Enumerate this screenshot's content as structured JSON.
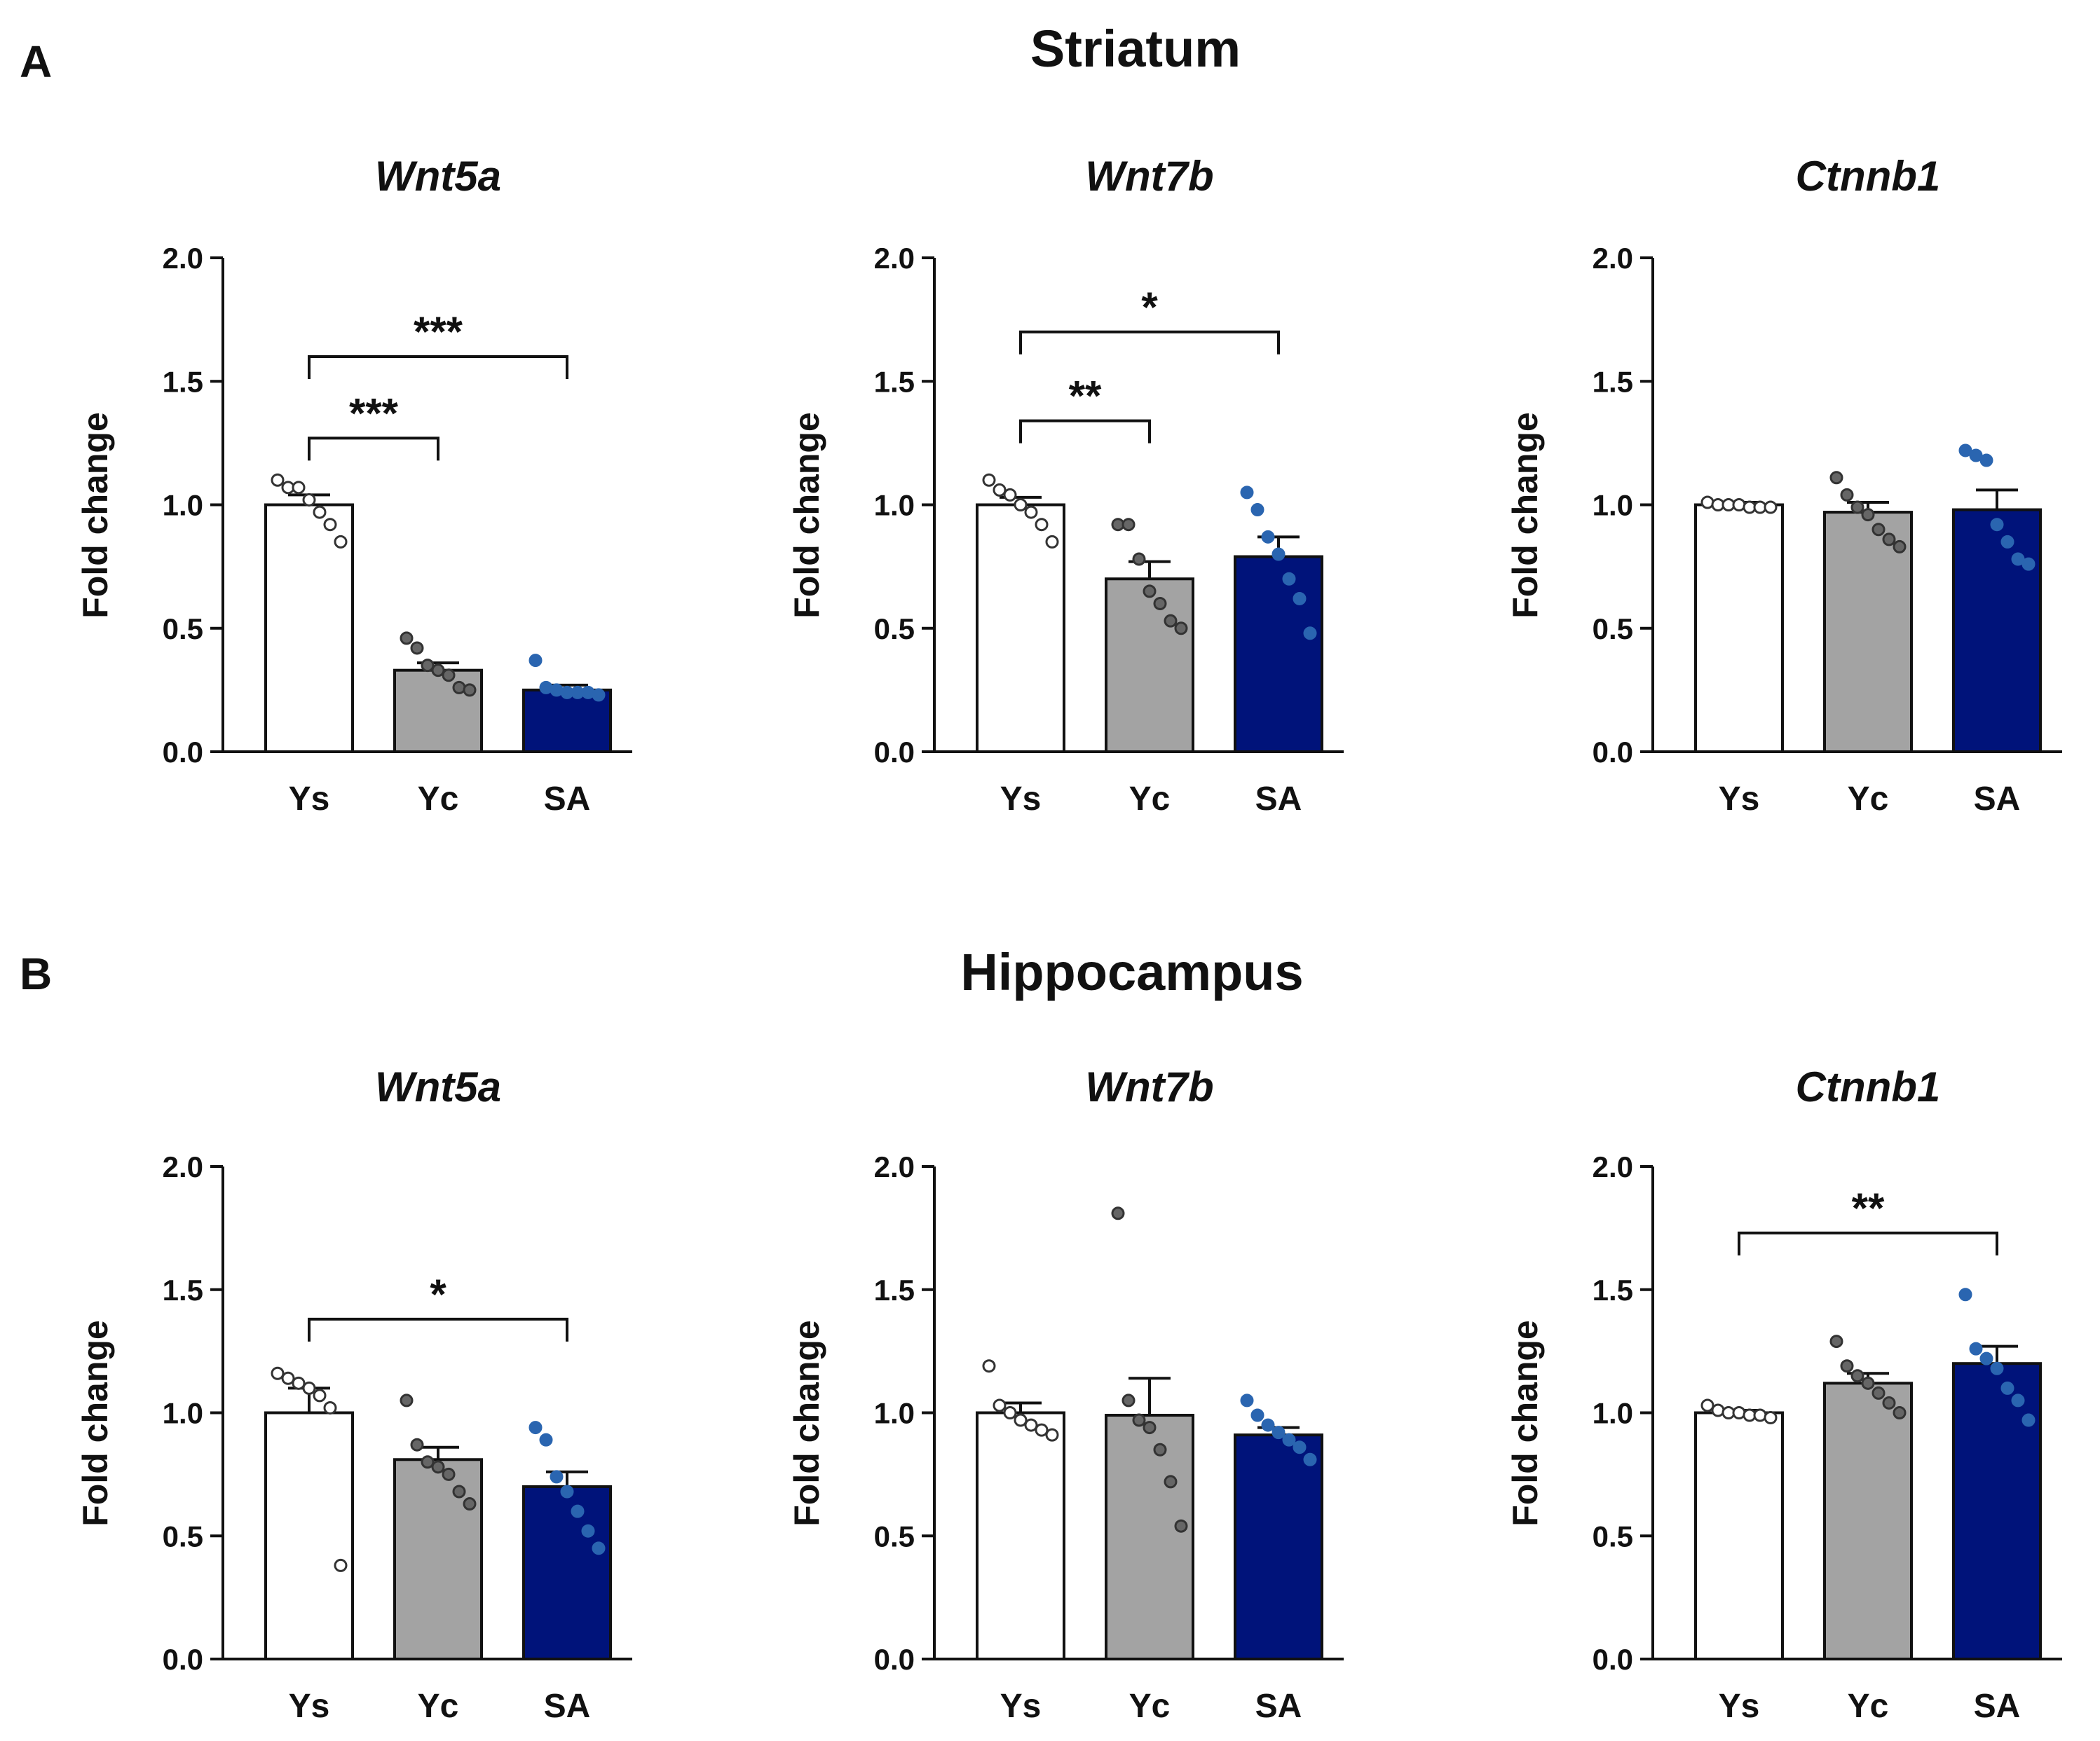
{
  "figure": {
    "panels": [
      {
        "letter": "A",
        "title": "Striatum"
      },
      {
        "letter": "B",
        "title": "Hippocampus"
      }
    ]
  },
  "colors": {
    "Ys": "#ffffff",
    "Yc": "#a3a3a3",
    "SA": "#00137a",
    "SA_dot": "#2a65b0",
    "axis": "#111111"
  },
  "chart_data": [
    {
      "type": "bar",
      "panel": "A",
      "title": "Wnt5a",
      "xlabel": "",
      "ylabel": "Fold change",
      "ylim": [
        0,
        2.0
      ],
      "yticks": [
        "0.0",
        "0.5",
        "1.0",
        "1.5",
        "2.0"
      ],
      "categories": [
        "Ys",
        "Yc",
        "SA"
      ],
      "values": [
        1.0,
        0.33,
        0.25
      ],
      "sem": [
        0.04,
        0.03,
        0.02
      ],
      "points": [
        [
          1.1,
          1.07,
          1.07,
          1.02,
          0.97,
          0.92,
          0.85
        ],
        [
          0.46,
          0.42,
          0.35,
          0.33,
          0.31,
          0.26,
          0.25
        ],
        [
          0.37,
          0.26,
          0.25,
          0.24,
          0.24,
          0.24,
          0.23
        ]
      ],
      "comparisons": [
        {
          "from": 0,
          "to": 1,
          "label": "***",
          "level": 1.27
        },
        {
          "from": 0,
          "to": 2,
          "label": "***",
          "level": 1.6
        }
      ]
    },
    {
      "type": "bar",
      "panel": "A",
      "title": "Wnt7b",
      "xlabel": "",
      "ylabel": "Fold change",
      "ylim": [
        0,
        2.0
      ],
      "yticks": [
        "0.0",
        "0.5",
        "1.0",
        "1.5",
        "2.0"
      ],
      "categories": [
        "Ys",
        "Yc",
        "SA"
      ],
      "values": [
        1.0,
        0.7,
        0.79
      ],
      "sem": [
        0.03,
        0.07,
        0.08
      ],
      "points": [
        [
          1.1,
          1.06,
          1.04,
          1.0,
          0.97,
          0.92,
          0.85
        ],
        [
          0.92,
          0.92,
          0.78,
          0.65,
          0.6,
          0.53,
          0.5
        ],
        [
          1.05,
          0.98,
          0.87,
          0.8,
          0.7,
          0.62,
          0.48
        ]
      ],
      "comparisons": [
        {
          "from": 0,
          "to": 1,
          "label": "**",
          "level": 1.34
        },
        {
          "from": 0,
          "to": 2,
          "label": "*",
          "level": 1.7
        }
      ]
    },
    {
      "type": "bar",
      "panel": "A",
      "title": "Ctnnb1",
      "xlabel": "",
      "ylabel": "Fold change",
      "ylim": [
        0,
        2.0
      ],
      "yticks": [
        "0.0",
        "0.5",
        "1.0",
        "1.5",
        "2.0"
      ],
      "categories": [
        "Ys",
        "Yc",
        "SA"
      ],
      "values": [
        1.0,
        0.97,
        0.98
      ],
      "sem": [
        0.01,
        0.04,
        0.08
      ],
      "points": [
        [
          1.01,
          1.0,
          1.0,
          1.0,
          0.99,
          0.99,
          0.99
        ],
        [
          1.11,
          1.04,
          0.99,
          0.96,
          0.9,
          0.86,
          0.83
        ],
        [
          1.22,
          1.2,
          1.18,
          0.92,
          0.85,
          0.78,
          0.76
        ]
      ],
      "comparisons": []
    },
    {
      "type": "bar",
      "panel": "B",
      "title": "Wnt5a",
      "xlabel": "",
      "ylabel": "Fold change",
      "ylim": [
        0,
        2.0
      ],
      "yticks": [
        "0.0",
        "0.5",
        "1.0",
        "1.5",
        "2.0"
      ],
      "categories": [
        "Ys",
        "Yc",
        "SA"
      ],
      "values": [
        1.0,
        0.81,
        0.7
      ],
      "sem": [
        0.1,
        0.05,
        0.06
      ],
      "points": [
        [
          1.16,
          1.14,
          1.12,
          1.1,
          1.07,
          1.02,
          0.38
        ],
        [
          1.05,
          0.87,
          0.8,
          0.78,
          0.75,
          0.68,
          0.63
        ],
        [
          0.94,
          0.89,
          0.74,
          0.68,
          0.6,
          0.52,
          0.45
        ]
      ],
      "comparisons": [
        {
          "from": 0,
          "to": 2,
          "label": "*",
          "level": 1.38
        }
      ]
    },
    {
      "type": "bar",
      "panel": "B",
      "title": "Wnt7b",
      "xlabel": "",
      "ylabel": "Fold change",
      "ylim": [
        0,
        2.0
      ],
      "yticks": [
        "0.0",
        "0.5",
        "1.0",
        "1.5",
        "2.0"
      ],
      "categories": [
        "Ys",
        "Yc",
        "SA"
      ],
      "values": [
        1.0,
        0.99,
        0.91
      ],
      "sem": [
        0.04,
        0.15,
        0.03
      ],
      "points": [
        [
          1.19,
          1.03,
          1.0,
          0.97,
          0.95,
          0.93,
          0.91
        ],
        [
          1.81,
          1.05,
          0.97,
          0.94,
          0.85,
          0.72,
          0.54
        ],
        [
          1.05,
          0.99,
          0.95,
          0.92,
          0.89,
          0.86,
          0.81
        ]
      ],
      "comparisons": []
    },
    {
      "type": "bar",
      "panel": "B",
      "title": "Ctnnb1",
      "xlabel": "",
      "ylabel": "Fold change",
      "ylim": [
        0,
        2.0
      ],
      "yticks": [
        "0.0",
        "0.5",
        "1.0",
        "1.5",
        "2.0"
      ],
      "categories": [
        "Ys",
        "Yc",
        "SA"
      ],
      "values": [
        1.0,
        1.12,
        1.2
      ],
      "sem": [
        0.01,
        0.04,
        0.07
      ],
      "points": [
        [
          1.03,
          1.01,
          1.0,
          1.0,
          0.99,
          0.99,
          0.98
        ],
        [
          1.29,
          1.19,
          1.15,
          1.12,
          1.08,
          1.04,
          1.0
        ],
        [
          1.48,
          1.26,
          1.22,
          1.18,
          1.1,
          1.05,
          0.97
        ]
      ],
      "comparisons": [
        {
          "from": 0,
          "to": 2,
          "label": "**",
          "level": 1.73
        }
      ]
    }
  ]
}
